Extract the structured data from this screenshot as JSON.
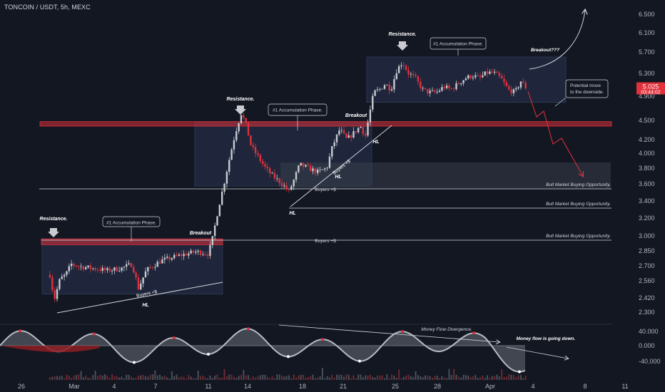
{
  "header": {
    "title": "TONCOIN / USDT, 5h, MEXC"
  },
  "colors": {
    "up": "#c9cbd1",
    "down": "#e0313c",
    "zone": "#2a3350",
    "resistance": "#d8303b",
    "text": "#d1d4dc",
    "osc_fill": "#6a6e78",
    "osc_red": "#8e1d22"
  },
  "chart_data": {
    "type": "candlestick",
    "symbol": "TONCOIN / USDT",
    "timeframe": "5h",
    "exchange": "MEXC",
    "y_scale": "log",
    "y_ticks": [
      "6.500",
      "6.100",
      "5.700",
      "5.300",
      "4.900",
      "4.500",
      "4.200",
      "4.000",
      "3.800",
      "3.600",
      "3.400",
      "3.200",
      "3.000",
      "2.850",
      "2.700",
      "2.560",
      "2.420",
      "2.300"
    ],
    "x_ticks": [
      "26",
      "Mar",
      "4",
      "7",
      "11",
      "14",
      "18",
      "21",
      "25",
      "28",
      "Apr",
      "4",
      "8",
      "11"
    ],
    "price_label": {
      "price": "5.025",
      "timer": "03:44:02"
    },
    "oscillator_ticks": [
      "40.000",
      "0.000",
      "-40.000"
    ],
    "oscillator_label": "Money Flow Divergence.",
    "levels": [
      {
        "price": 3.57,
        "label": "Bull Market Buying Opportunity."
      },
      {
        "price": 3.31,
        "label": "Bull Market Buying Opportunity."
      },
      {
        "price": 2.98,
        "label": "Bull Market Buying Opportunity."
      }
    ],
    "level_mid_labels": [
      {
        "label": "Buyers +$"
      },
      {
        "label": "Buyers +$"
      }
    ],
    "resistance_bands": [
      {
        "from": 4.4,
        "to": 4.47
      },
      {
        "from": 2.91,
        "to": 2.97
      }
    ],
    "phases": [
      {
        "label": "#1 Accumulation Phase.",
        "price_from": 2.45,
        "price_to": 2.97
      },
      {
        "label": "#1 Accumulation Phase.",
        "price_from": 3.57,
        "price_to": 4.47
      },
      {
        "label": "#1 Accumulation Phase.",
        "price_from": 4.78,
        "price_to": 5.6
      }
    ],
    "annotations": {
      "resistance": "Resistance.",
      "breakout": "Breakout",
      "breakout_q": "Breakout???",
      "hl": "HL",
      "buyers": "Buyers +$",
      "potential_move": "Potential move to the downside.",
      "money_flow_down": "Money flow is going down."
    }
  }
}
